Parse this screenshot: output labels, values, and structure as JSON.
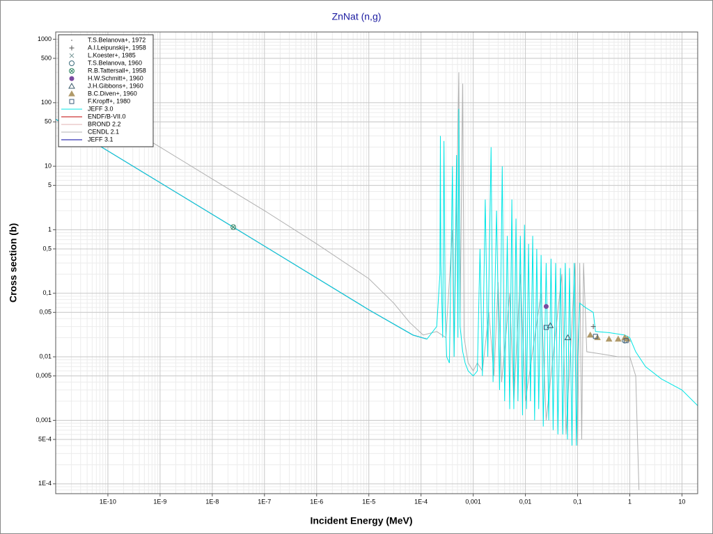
{
  "chart_data": {
    "type": "line",
    "title": "ZnNat (n,g)",
    "x_label": "Incident Energy (MeV)",
    "y_label": "Cross section (b)",
    "xscale": "log",
    "yscale": "log",
    "grid": true,
    "legend": "upper left",
    "xlim": [
      1e-11,
      20
    ],
    "ylim": [
      7e-05,
      1300
    ],
    "xticks": [
      {
        "value": 1e-10,
        "label": "1E-10"
      },
      {
        "value": 1e-09,
        "label": "1E-9"
      },
      {
        "value": 1e-08,
        "label": "1E-8"
      },
      {
        "value": 1e-07,
        "label": "1E-7"
      },
      {
        "value": 1e-06,
        "label": "1E-6"
      },
      {
        "value": 1e-05,
        "label": "1E-5"
      },
      {
        "value": 0.0001,
        "label": "1E-4"
      },
      {
        "value": 0.001,
        "label": "0,001"
      },
      {
        "value": 0.01,
        "label": "0,01"
      },
      {
        "value": 0.1,
        "label": "0,1"
      },
      1,
      10
    ],
    "yticks": [
      1000,
      500,
      100,
      50,
      10,
      5,
      1,
      {
        "value": 0.5,
        "label": "0,5"
      },
      {
        "value": 0.1,
        "label": "0,1"
      },
      {
        "value": 0.05,
        "label": "0,05"
      },
      {
        "value": 0.01,
        "label": "0,01"
      },
      {
        "value": 0.005,
        "label": "0,005"
      },
      {
        "value": 0.001,
        "label": "0,001"
      },
      {
        "value": 0.0005,
        "label": "5E-4"
      },
      {
        "value": 0.0001,
        "label": "1E-4"
      }
    ],
    "series": [
      {
        "name": "T.S.Belanova+, 1972",
        "color": "#999999",
        "marker": "dot",
        "x": [
          2.53e-08
        ],
        "values": [
          1.1
        ]
      },
      {
        "name": "A.I.Leipunskij+, 1958",
        "color": "#555555",
        "marker": "plus",
        "x": [
          0.2
        ],
        "values": [
          0.03
        ]
      },
      {
        "name": "L.Koester+, 1985",
        "color": "#7a9a9a",
        "marker": "cross",
        "x": [
          2.53e-08
        ],
        "values": [
          1.1
        ]
      },
      {
        "name": "T.S.Belanova, 1960",
        "color": "#3a6a7a",
        "marker": "circle",
        "x": [
          0.8
        ],
        "values": [
          0.018
        ]
      },
      {
        "name": "R.B.Tattersall+, 1958",
        "color": "#3a8a6a",
        "marker": "circle-x",
        "x": [
          2.53e-08
        ],
        "values": [
          1.1
        ]
      },
      {
        "name": "H.W.Schmitt+, 1960",
        "color": "#7a4aa0",
        "marker": "filled-circle",
        "x": [
          0.025
        ],
        "values": [
          0.062
        ]
      },
      {
        "name": "J.H.Gibbons+, 1960",
        "color": "#3a5a6a",
        "marker": "triangle",
        "x": [
          0.03,
          0.065
        ],
        "values": [
          0.031,
          0.02
        ]
      },
      {
        "name": "B.C.Diven+, 1960",
        "color": "#b09a6a",
        "marker": "filled-triangle",
        "x": [
          0.175,
          0.24,
          0.4,
          0.6,
          0.8,
          0.9
        ],
        "values": [
          0.022,
          0.02,
          0.019,
          0.019,
          0.02,
          0.019
        ]
      },
      {
        "name": "F.Kropff+, 1980",
        "color": "#3a5a7a",
        "marker": "square",
        "x": [
          0.025,
          0.22,
          0.85
        ],
        "values": [
          0.029,
          0.021,
          0.018
        ]
      },
      {
        "name": "JEFF 3.0",
        "color": "#00e5e5",
        "marker": "line",
        "x": [
          1e-11,
          2.53e-08,
          1e-05,
          7e-05,
          0.00013,
          0.0002,
          0.00023,
          0.000235,
          0.00024,
          0.00026,
          0.000275,
          0.00029,
          0.00031,
          0.00035,
          0.0004,
          0.00043,
          0.00048,
          0.00051,
          0.00053,
          0.00056,
          0.00063,
          0.0007,
          0.0008,
          0.001,
          0.0012,
          0.00135,
          0.0015,
          0.0017,
          0.0019,
          0.0022,
          0.0024,
          0.0028,
          0.0032,
          0.0036,
          0.004,
          0.0045,
          0.005,
          0.0055,
          0.006,
          0.0066,
          0.0072,
          0.008,
          0.0088,
          0.0096,
          0.0105,
          0.0115,
          0.0125,
          0.0138,
          0.015,
          0.0165,
          0.018,
          0.02,
          0.022,
          0.025,
          0.028,
          0.031,
          0.034,
          0.038,
          0.042,
          0.047,
          0.052,
          0.058,
          0.064,
          0.07,
          0.078,
          0.086,
          0.095,
          0.1,
          0.11,
          0.14,
          0.2,
          0.22,
          0.4,
          0.8,
          1,
          1.3,
          2,
          4,
          10,
          20
        ],
        "values": [
          55,
          1.1,
          0.055,
          0.022,
          0.019,
          0.03,
          0.2,
          30,
          0.3,
          0.02,
          25,
          0.05,
          0.01,
          0.008,
          10,
          0.01,
          15,
          0.02,
          80,
          0.03,
          0.012,
          0.008,
          0.006,
          0.005,
          0.006,
          0.5,
          0.005,
          3,
          0.01,
          20,
          0.004,
          2,
          0.003,
          10,
          0.002,
          0.8,
          0.0015,
          3,
          0.0015,
          1.5,
          0.002,
          0.8,
          0.0012,
          1.2,
          0.0015,
          0.6,
          0.002,
          0.8,
          0.001,
          0.5,
          0.0015,
          0.4,
          0.0008,
          0.3,
          0.001,
          0.35,
          0.0007,
          0.3,
          0.0006,
          0.25,
          0.0006,
          0.3,
          0.0005,
          0.25,
          0.0004,
          0.3,
          0.0004,
          0.01,
          0.07,
          0.06,
          0.05,
          0.025,
          0.024,
          0.022,
          0.02,
          0.012,
          0.007,
          0.0045,
          0.003,
          0.0017
        ]
      },
      {
        "name": "ENDF/B-VII.0",
        "color": "#c00000",
        "marker": "line",
        "x": [
          1e-11,
          2.53e-08,
          1e-05,
          7e-05,
          0.00013
        ],
        "values": [
          55,
          1.1,
          0.055,
          0.022,
          0.019
        ]
      },
      {
        "name": "BROND 2.2",
        "color": "#e0b0b0",
        "marker": "line",
        "x": [
          1e-11,
          2.53e-08,
          1e-05,
          7e-05,
          0.00013
        ],
        "values": [
          55,
          1.1,
          0.055,
          0.022,
          0.019
        ]
      },
      {
        "name": "CENDL 2.1",
        "color": "#b0b0b0",
        "marker": "line",
        "x": [
          3e-10,
          1e-09,
          1e-08,
          1e-07,
          1e-06,
          1e-05,
          3e-05,
          6e-05,
          0.00011,
          0.0002,
          0.0003,
          0.0004,
          0.00043,
          0.00053,
          0.00056,
          0.00063,
          0.00067,
          0.0008,
          0.001,
          0.0012,
          0.0015,
          0.002,
          0.0025,
          0.003,
          0.0035,
          0.005,
          0.006,
          0.008,
          0.01,
          0.02,
          0.025,
          0.05,
          0.06,
          0.09,
          0.1,
          0.11,
          0.12,
          0.13,
          0.15,
          0.3,
          0.6,
          1,
          1.3,
          1.5
        ],
        "values": [
          36,
          20,
          6.3,
          2,
          0.6,
          0.17,
          0.07,
          0.035,
          0.022,
          0.025,
          0.02,
          1,
          0.01,
          300,
          0.05,
          200,
          0.02,
          0.008,
          0.006,
          0.008,
          0.006,
          0.05,
          0.005,
          0.15,
          0.004,
          0.1,
          0.002,
          0.2,
          0.002,
          0.1,
          0.001,
          0.2,
          0.0006,
          0.3,
          0.0004,
          0.3,
          0.0005,
          0.3,
          0.012,
          0.011,
          0.01,
          0.01,
          0.005,
          8e-05
        ]
      },
      {
        "name": "JEFF 3.1",
        "color": "#0000a0",
        "marker": "line",
        "x": [
          1e-11,
          2.53e-08,
          1e-05,
          7e-05,
          0.00013
        ],
        "values": [
          55,
          1.1,
          0.055,
          0.022,
          0.019
        ]
      }
    ]
  }
}
